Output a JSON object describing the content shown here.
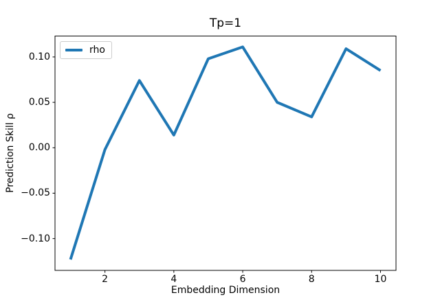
{
  "chart_data": {
    "type": "line",
    "title": "Tp=1",
    "xlabel": "Embedding Dimension",
    "ylabel": "Prediction Skill ρ",
    "x": [
      1,
      2,
      3,
      4,
      5,
      6,
      7,
      8,
      9,
      10
    ],
    "series": [
      {
        "name": "rho",
        "color": "#1f77b4",
        "values": [
          -0.123,
          -0.002,
          0.074,
          0.014,
          0.098,
          0.111,
          0.05,
          0.034,
          0.109,
          0.085
        ]
      }
    ],
    "xlim": [
      0.55,
      10.45
    ],
    "ylim": [
      -0.135,
      0.123
    ],
    "xticks": {
      "values": [
        2,
        4,
        6,
        8,
        10
      ],
      "labels": [
        "2",
        "4",
        "6",
        "8",
        "10"
      ]
    },
    "yticks": {
      "values": [
        -0.1,
        -0.05,
        0.0,
        0.05,
        0.1
      ],
      "labels": [
        "−0.10",
        "−0.05",
        "0.00",
        "0.05",
        "0.10"
      ]
    },
    "grid": false,
    "legend": {
      "position": "upper left"
    },
    "colors": {
      "spine": "#000000",
      "text": "#000000",
      "background": "#ffffff"
    }
  }
}
